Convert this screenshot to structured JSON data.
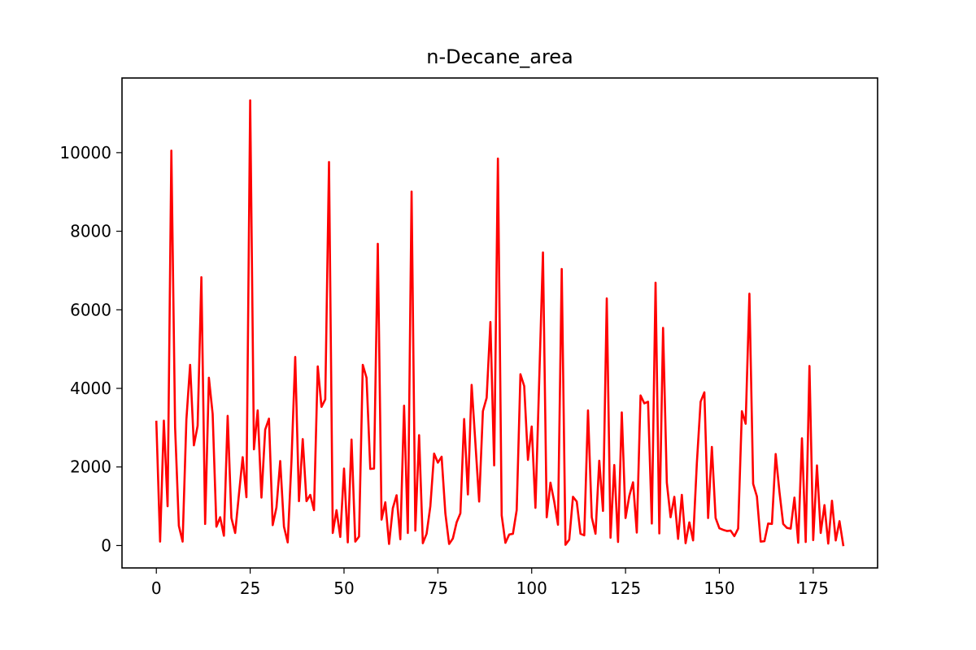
{
  "chart_data": {
    "type": "line",
    "title": "n-Decane_area",
    "xlabel": "",
    "ylabel": "",
    "xlim": [
      -9.15,
      192.15
    ],
    "ylim": [
      -570,
      11900
    ],
    "grid": false,
    "x_ticks": [
      0,
      25,
      50,
      75,
      100,
      125,
      150,
      175
    ],
    "y_ticks": [
      0,
      2000,
      4000,
      6000,
      8000,
      10000
    ],
    "series": [
      {
        "color": "#ff0000",
        "x_start": 0,
        "x_step": 1,
        "values": [
          3150,
          100,
          3180,
          1000,
          10050,
          3000,
          500,
          100,
          3200,
          4600,
          2550,
          3050,
          6830,
          550,
          4270,
          3350,
          480,
          720,
          250,
          3300,
          700,
          320,
          1300,
          2250,
          1230,
          11330,
          2450,
          3440,
          1220,
          2950,
          3230,
          520,
          970,
          2150,
          480,
          80,
          2150,
          4800,
          1130,
          2710,
          1130,
          1290,
          900,
          4560,
          3530,
          3720,
          9760,
          320,
          900,
          220,
          1960,
          80,
          2700,
          100,
          230,
          4600,
          4270,
          1950,
          1960,
          7680,
          660,
          1100,
          40,
          950,
          1280,
          160,
          3560,
          320,
          9010,
          380,
          2810,
          60,
          300,
          1000,
          2340,
          2110,
          2260,
          820,
          40,
          180,
          590,
          820,
          3220,
          1300,
          4090,
          2610,
          1120,
          3420,
          3760,
          5690,
          2040,
          9850,
          770,
          70,
          280,
          300,
          900,
          4360,
          4060,
          2180,
          3030,
          960,
          4200,
          7460,
          720,
          1600,
          1120,
          530,
          7040,
          20,
          150,
          1240,
          1120,
          300,
          260,
          3440,
          720,
          300,
          2160,
          880,
          6290,
          200,
          2050,
          90,
          3390,
          700,
          1260,
          1610,
          330,
          3820,
          3620,
          3660,
          560,
          6690,
          310,
          5540,
          1600,
          720,
          1240,
          170,
          1290,
          60,
          590,
          130,
          2100,
          3660,
          3900,
          700,
          2510,
          700,
          440,
          400,
          370,
          380,
          240,
          430,
          3420,
          3100,
          6410,
          1570,
          1250,
          100,
          110,
          560,
          550,
          2330,
          1370,
          550,
          450,
          430,
          1220,
          70,
          2730,
          90,
          4570,
          140,
          2040,
          320,
          1030,
          50,
          1140,
          130,
          620,
          10
        ]
      }
    ]
  }
}
